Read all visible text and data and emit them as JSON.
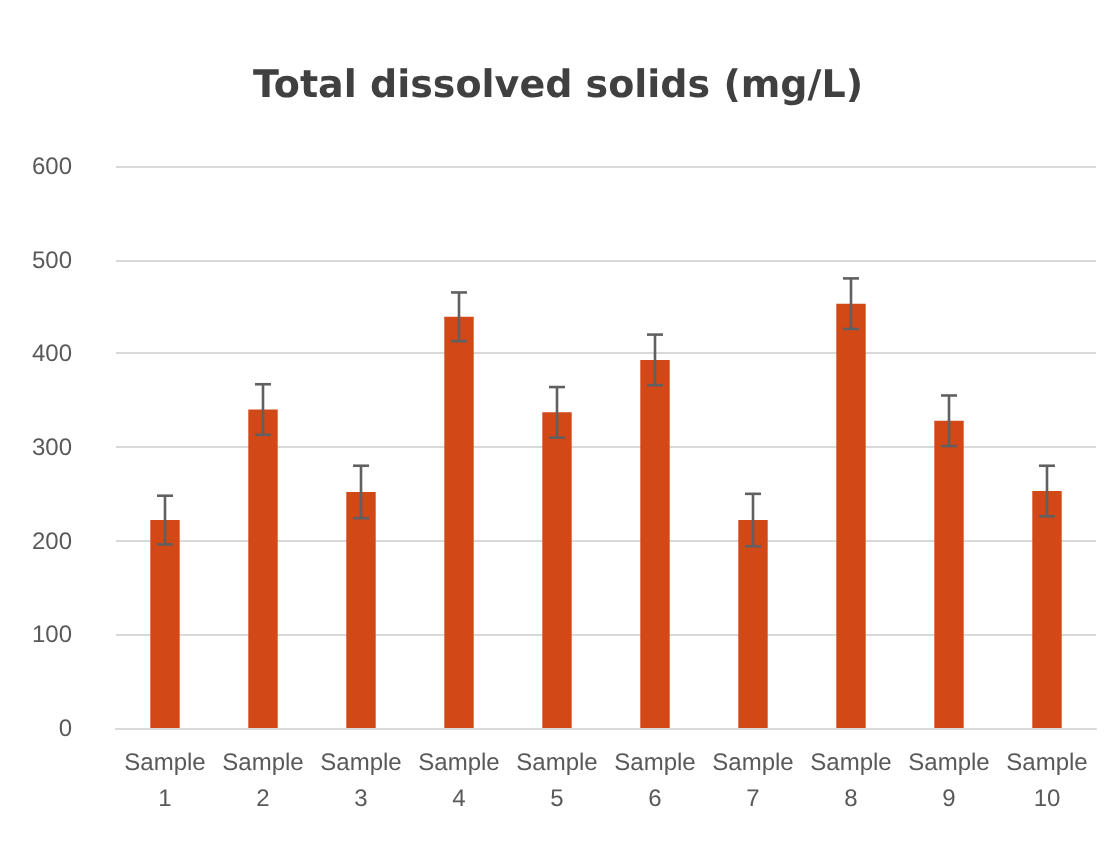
{
  "chart_data": {
    "type": "bar",
    "title": "Total dissolved solids (mg/L)",
    "categories": [
      "Sample 1",
      "Sample 2",
      "Sample 3",
      "Sample 4",
      "Sample 5",
      "Sample 6",
      "Sample 7",
      "Sample 8",
      "Sample 9",
      "Sample 10"
    ],
    "values": [
      222,
      340,
      252,
      439,
      337,
      393,
      222,
      453,
      328,
      253
    ],
    "errors": [
      26,
      27,
      28,
      26,
      27,
      27,
      28,
      27,
      27,
      27
    ],
    "color": "#d34817",
    "ylim": [
      0,
      600
    ],
    "yticks": [
      0,
      100,
      200,
      300,
      400,
      500,
      600
    ],
    "grid": "y"
  }
}
